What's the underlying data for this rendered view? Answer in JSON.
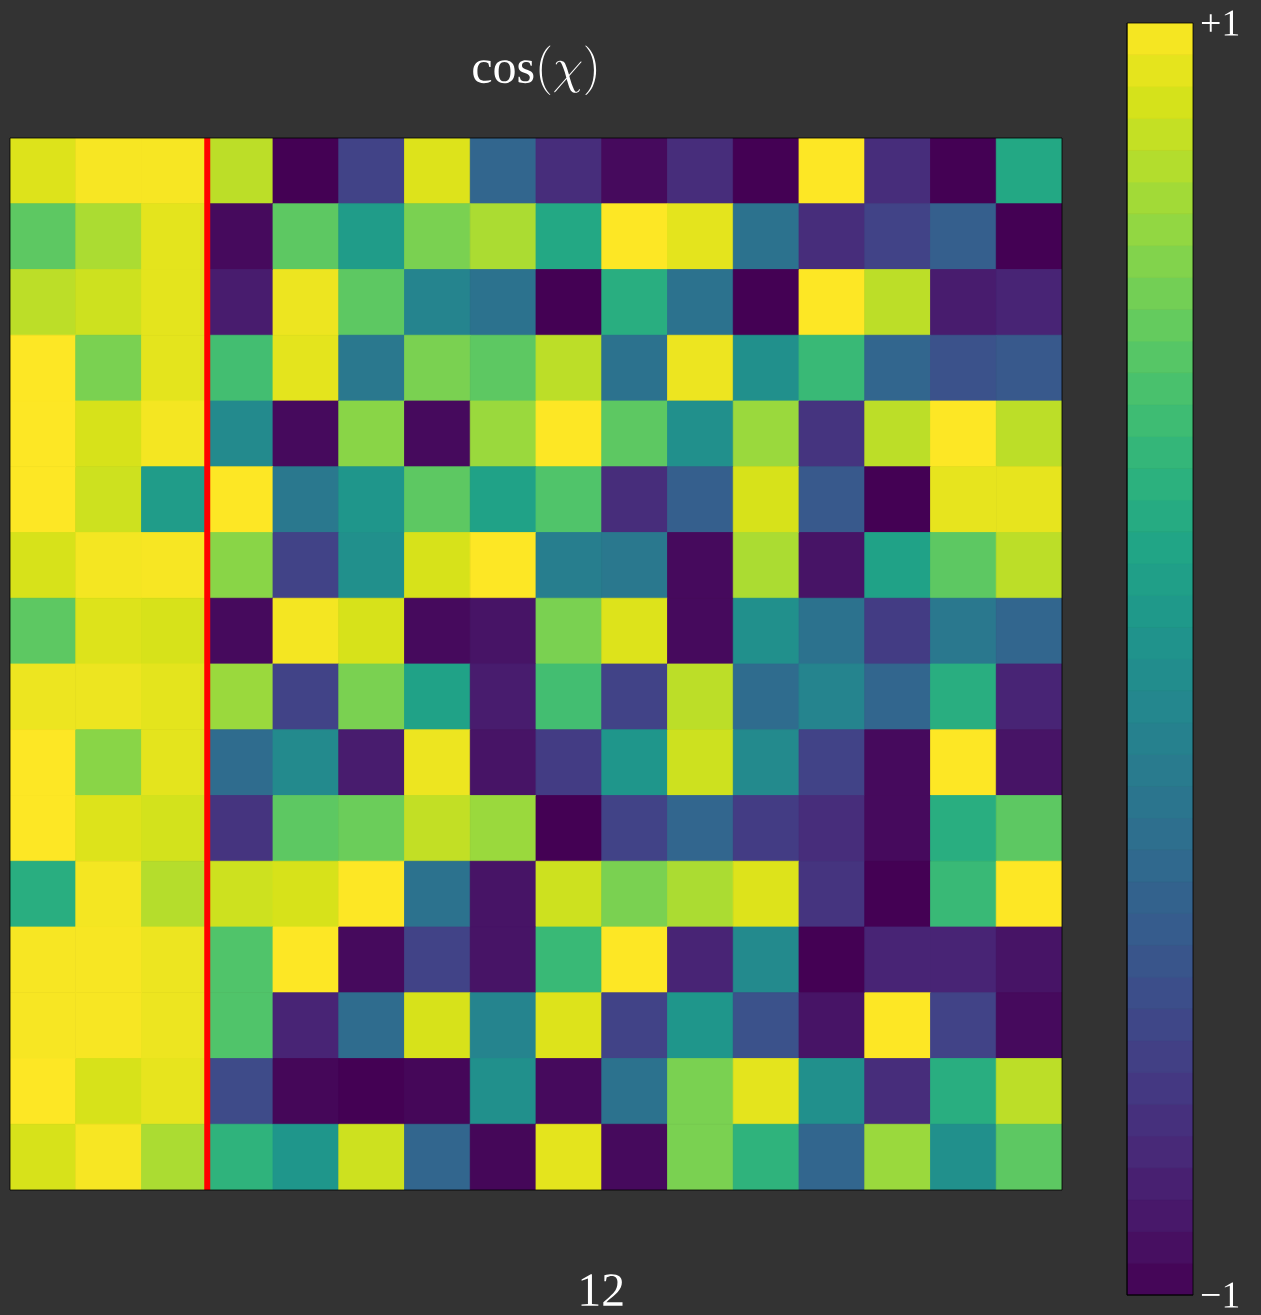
{
  "chart_data": {
    "type": "heatmap",
    "title": "\\cos(\\chi)",
    "xlabel": "12",
    "categories": [
      null,
      null,
      null,
      null,
      null,
      null,
      null,
      null,
      null,
      null,
      null,
      null,
      null,
      null,
      null,
      null
    ],
    "y_categories": [
      null,
      null,
      null,
      null,
      null,
      null,
      null,
      null,
      null,
      null,
      null,
      null,
      null,
      null,
      null,
      null
    ],
    "cells": [
      [
        0.9,
        0.98,
        0.98,
        0.8,
        -1,
        -0.6,
        0.9,
        -0.35,
        -0.75,
        -0.95,
        -0.75,
        -1,
        1,
        -0.75,
        -1,
        0.2
      ],
      [
        0.5,
        0.75,
        0.92,
        -0.95,
        0.5,
        0.1,
        0.6,
        0.75,
        0.2,
        1,
        0.92,
        -0.25,
        -0.75,
        -0.6,
        -0.4,
        -1
      ],
      [
        0.8,
        0.85,
        0.92,
        -0.85,
        0.95,
        0.5,
        -0.1,
        -0.25,
        -1,
        0.25,
        -0.25,
        -1,
        1,
        0.8,
        -0.85,
        -0.8
      ],
      [
        1,
        0.6,
        0.92,
        0.4,
        0.92,
        -0.2,
        0.6,
        0.5,
        0.8,
        -0.25,
        0.95,
        0,
        0.35,
        -0.35,
        -0.5,
        -0.45
      ],
      [
        1,
        0.88,
        0.97,
        -0.05,
        -0.95,
        0.65,
        -0.95,
        0.7,
        1,
        0.5,
        0,
        0.7,
        -0.7,
        0.8,
        1,
        0.8
      ],
      [
        1,
        0.85,
        0.1,
        1,
        -0.2,
        0.05,
        0.5,
        0.15,
        0.45,
        -0.75,
        -0.4,
        0.88,
        -0.45,
        -1,
        0.93,
        0.93
      ],
      [
        0.88,
        0.97,
        0.98,
        0.65,
        -0.6,
        0,
        0.88,
        1,
        -0.15,
        -0.2,
        -0.95,
        0.75,
        -0.9,
        0.15,
        0.5,
        0.8
      ],
      [
        0.5,
        0.9,
        0.88,
        -0.95,
        0.97,
        0.88,
        -0.95,
        -0.9,
        0.6,
        0.9,
        -0.95,
        0,
        -0.25,
        -0.65,
        -0.2,
        -0.35
      ],
      [
        0.95,
        0.95,
        0.92,
        0.7,
        -0.6,
        0.6,
        0.15,
        -0.85,
        0.4,
        -0.6,
        0.8,
        -0.3,
        -0.1,
        -0.35,
        0.25,
        -0.8
      ],
      [
        1,
        0.65,
        0.92,
        -0.3,
        -0.05,
        -0.85,
        0.95,
        -0.9,
        -0.65,
        0.05,
        0.85,
        -0.05,
        -0.6,
        -0.95,
        1,
        -0.9
      ],
      [
        1,
        0.9,
        0.87,
        -0.7,
        0.5,
        0.55,
        0.82,
        0.7,
        -1,
        -0.6,
        -0.35,
        -0.65,
        -0.75,
        -0.95,
        0.25,
        0.5
      ],
      [
        0.25,
        0.97,
        0.78,
        0.85,
        0.88,
        1,
        -0.25,
        -0.9,
        0.85,
        0.6,
        0.75,
        0.9,
        -0.7,
        -1,
        0.35,
        1
      ],
      [
        0.98,
        0.98,
        0.95,
        0.45,
        1,
        -0.95,
        -0.6,
        -0.9,
        0.35,
        1,
        -0.8,
        -0.05,
        -1,
        -0.8,
        -0.8,
        -0.9
      ],
      [
        0.98,
        0.98,
        0.95,
        0.45,
        -0.8,
        -0.3,
        0.88,
        -0.1,
        0.9,
        -0.6,
        0.05,
        -0.5,
        -0.9,
        1,
        -0.6,
        -0.95
      ],
      [
        1,
        0.88,
        0.93,
        -0.55,
        -0.97,
        -1,
        -0.97,
        0,
        -0.95,
        -0.25,
        0.6,
        0.92,
        0,
        -0.75,
        0.25,
        0.8
      ],
      [
        0.88,
        0.98,
        0.75,
        0.3,
        0.05,
        0.85,
        -0.35,
        -0.97,
        0.92,
        -0.95,
        0.6,
        0.3,
        -0.35,
        0.7,
        0,
        0.5
      ]
    ],
    "clim": [
      -1,
      1
    ],
    "cticks": [
      {
        "value": 1,
        "label": "+1"
      },
      {
        "value": -1,
        "label": "−1"
      }
    ]
  }
}
